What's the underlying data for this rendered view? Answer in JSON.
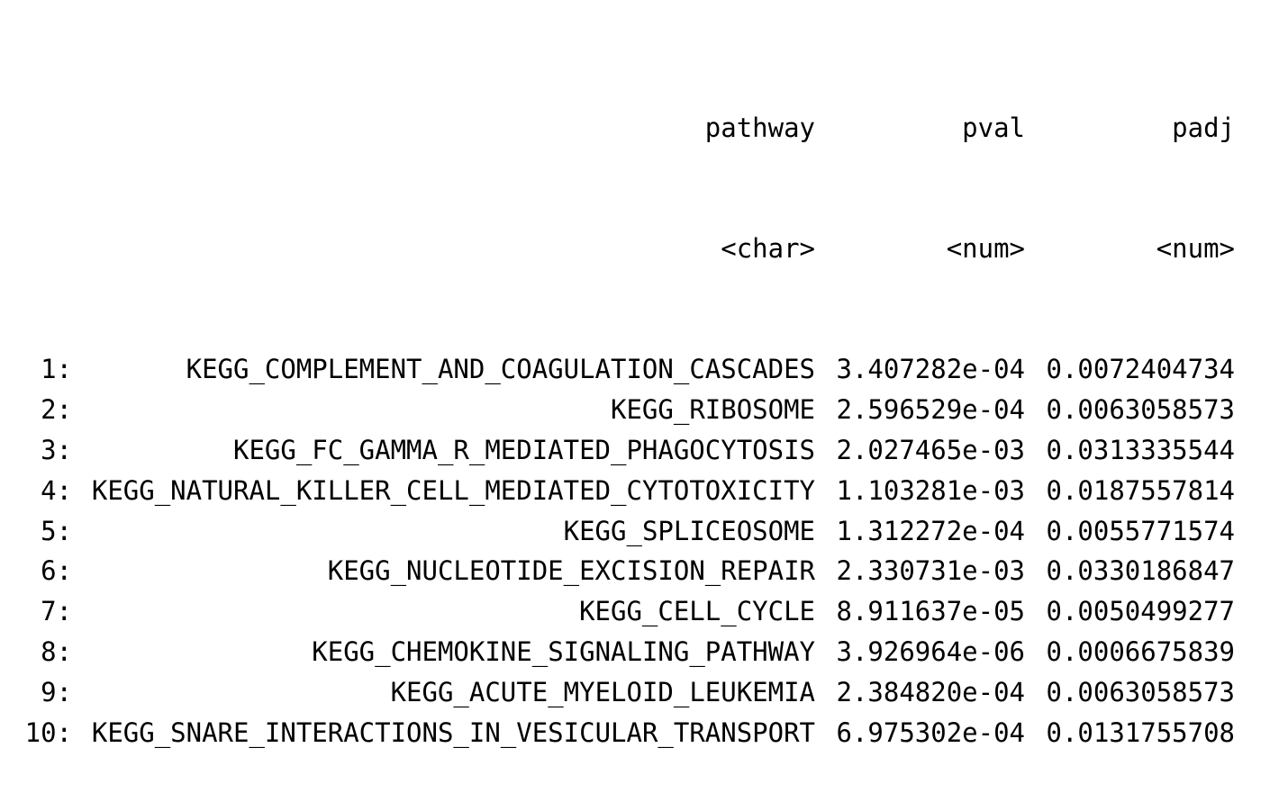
{
  "table": {
    "columns": [
      {
        "name": "pathway",
        "type": "<char>"
      },
      {
        "name": "pval",
        "type": "<num>"
      },
      {
        "name": "padj",
        "type": "<num>"
      }
    ],
    "rows": [
      {
        "index": "1:",
        "pathway": "KEGG_COMPLEMENT_AND_COAGULATION_CASCADES",
        "pval": "3.407282e-04",
        "padj": "0.0072404734"
      },
      {
        "index": "2:",
        "pathway": "KEGG_RIBOSOME",
        "pval": "2.596529e-04",
        "padj": "0.0063058573"
      },
      {
        "index": "3:",
        "pathway": "KEGG_FC_GAMMA_R_MEDIATED_PHAGOCYTOSIS",
        "pval": "2.027465e-03",
        "padj": "0.0313335544"
      },
      {
        "index": "4:",
        "pathway": "KEGG_NATURAL_KILLER_CELL_MEDIATED_CYTOTOXICITY",
        "pval": "1.103281e-03",
        "padj": "0.0187557814"
      },
      {
        "index": "5:",
        "pathway": "KEGG_SPLICEOSOME",
        "pval": "1.312272e-04",
        "padj": "0.0055771574"
      },
      {
        "index": "6:",
        "pathway": "KEGG_NUCLEOTIDE_EXCISION_REPAIR",
        "pval": "2.330731e-03",
        "padj": "0.0330186847"
      },
      {
        "index": "7:",
        "pathway": "KEGG_CELL_CYCLE",
        "pval": "8.911637e-05",
        "padj": "0.0050499277"
      },
      {
        "index": "8:",
        "pathway": "KEGG_CHEMOKINE_SIGNALING_PATHWAY",
        "pval": "3.926964e-06",
        "padj": "0.0006675839"
      },
      {
        "index": "9:",
        "pathway": "KEGG_ACUTE_MYELOID_LEUKEMIA",
        "pval": "2.384820e-04",
        "padj": "0.0063058573"
      },
      {
        "index": "10:",
        "pathway": "KEGG_SNARE_INTERACTIONS_IN_VESICULAR_TRANSPORT",
        "pval": "6.975302e-04",
        "padj": "0.0131755708"
      }
    ]
  }
}
